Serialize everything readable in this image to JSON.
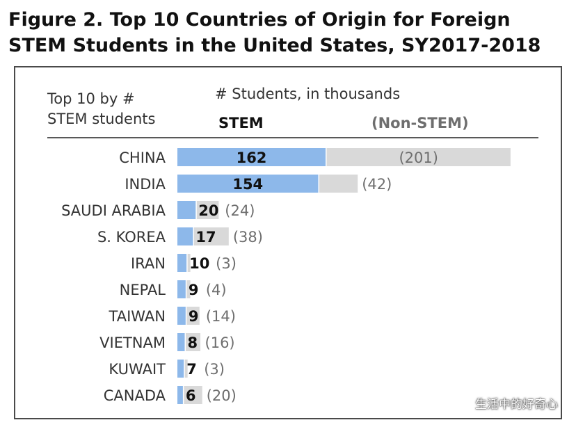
{
  "figure": {
    "title_line1": "Figure 2. Top 10 Countries of Origin for Foreign",
    "title_line2": "STEM Students in the United States, SY2017-2018"
  },
  "chart_data": {
    "type": "bar",
    "orientation": "horizontal",
    "stacked": true,
    "row_header_line1": "Top 10 by #",
    "row_header_line2": "STEM students",
    "units_label": "# Students, in thousands",
    "categories": [
      "CHINA",
      "INDIA",
      "SAUDI ARABIA",
      "S. KOREA",
      "IRAN",
      "NEPAL",
      "TAIWAN",
      "VIETNAM",
      "KUWAIT",
      "CANADA"
    ],
    "series": [
      {
        "name": "STEM",
        "color": "#8db8ea",
        "values": [
          162,
          154,
          20,
          17,
          10,
          9,
          9,
          8,
          7,
          6
        ],
        "labels": [
          "162",
          "154",
          "20",
          "17",
          "10",
          "9",
          "9",
          "8",
          "7",
          "6"
        ]
      },
      {
        "name": "(Non-STEM)",
        "color": "#d9d9d9",
        "values": [
          201,
          42,
          24,
          38,
          3,
          4,
          14,
          16,
          3,
          20
        ],
        "labels": [
          "(201)",
          "(42)",
          "(24)",
          "(38)",
          "(3)",
          "(4)",
          "(14)",
          "(16)",
          "(3)",
          "(20)"
        ]
      }
    ],
    "colors": {
      "stem": "#8db8ea",
      "non_stem": "#d9d9d9",
      "label_dark": "#111111",
      "label_muted": "#6e6e6e"
    }
  },
  "watermark": {
    "text": "生活中的好奇心",
    "icon": "chat-bubble-icon"
  }
}
